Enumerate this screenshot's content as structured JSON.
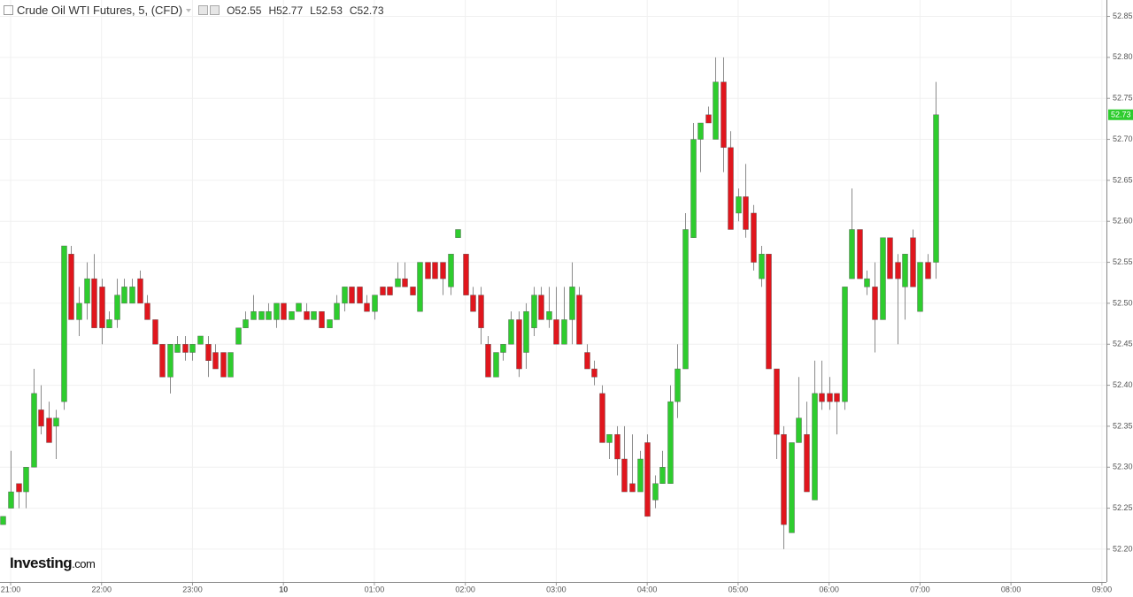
{
  "chart_data": {
    "type": "candlestick",
    "title": "Crude Oil WTI Futures, 5, (CFD)",
    "readout": [
      {
        "label": "O",
        "value": 52.55
      },
      {
        "label": "H",
        "value": 52.77
      },
      {
        "label": "L",
        "value": 52.53
      },
      {
        "label": "C",
        "value": 52.73
      }
    ],
    "watermark": [
      "Investing",
      ".com"
    ],
    "up_color": "#2ecc2e",
    "down_color": "#e0161d",
    "wick_color": "#8a8a8a",
    "grid": true,
    "x": [
      "20:55",
      "21:00",
      "21:05",
      "21:10",
      "21:15",
      "21:20",
      "21:25",
      "21:30",
      "21:35",
      "21:40",
      "21:45",
      "21:50",
      "21:55",
      "22:00",
      "22:05",
      "22:10",
      "22:15",
      "22:20",
      "22:25",
      "22:30",
      "22:35",
      "22:40",
      "22:45",
      "22:50",
      "22:55",
      "23:00",
      "23:05",
      "23:10",
      "23:15",
      "23:20",
      "23:25",
      "23:30",
      "23:35",
      "23:40",
      "23:45",
      "23:50",
      "23:55",
      "00:00",
      "00:05",
      "00:10",
      "00:15",
      "00:20",
      "00:25",
      "00:30",
      "00:35",
      "00:40",
      "00:45",
      "00:50",
      "00:55",
      "01:00",
      "01:05",
      "01:10",
      "01:15",
      "01:20",
      "01:25",
      "01:30",
      "01:35",
      "01:40",
      "01:45",
      "01:50",
      "01:55",
      "02:00",
      "02:05",
      "02:10",
      "02:15",
      "02:20",
      "02:25",
      "02:30",
      "02:35",
      "02:40",
      "02:45",
      "02:50",
      "02:55",
      "03:00",
      "03:05",
      "03:10",
      "03:15",
      "03:20",
      "03:25",
      "03:30",
      "03:35",
      "03:40",
      "03:45",
      "03:50",
      "03:55",
      "04:00",
      "04:05",
      "04:10",
      "04:15",
      "04:20",
      "04:25",
      "04:30",
      "04:35",
      "04:40",
      "04:45",
      "04:50",
      "04:55",
      "05:00",
      "05:05",
      "05:10",
      "05:15",
      "05:20",
      "05:25",
      "05:30",
      "05:35",
      "05:40",
      "05:45",
      "05:50",
      "05:55",
      "06:00",
      "06:05",
      "06:10",
      "06:15",
      "06:20",
      "06:25",
      "06:30",
      "06:35",
      "06:40",
      "06:45",
      "06:50",
      "06:55",
      "07:00",
      "07:05",
      "07:10"
    ],
    "open": [
      52.23,
      52.25,
      52.28,
      52.27,
      52.3,
      52.37,
      52.36,
      52.35,
      52.38,
      52.56,
      52.48,
      52.5,
      52.53,
      52.52,
      52.47,
      52.48,
      52.5,
      52.5,
      52.53,
      52.5,
      52.48,
      52.45,
      52.41,
      52.44,
      52.45,
      52.44,
      52.45,
      52.45,
      52.44,
      52.44,
      52.41,
      52.45,
      52.47,
      52.48,
      52.48,
      52.48,
      52.48,
      52.5,
      52.48,
      52.49,
      52.49,
      52.48,
      52.49,
      52.47,
      52.48,
      52.5,
      52.52,
      52.52,
      52.5,
      52.49,
      52.52,
      52.52,
      52.52,
      52.53,
      52.52,
      52.49,
      52.55,
      52.55,
      52.55,
      52.52,
      52.58,
      52.56,
      52.51,
      52.51,
      52.45,
      52.41,
      52.44,
      52.45,
      52.48,
      52.44,
      52.47,
      52.51,
      52.48,
      52.48,
      52.45,
      52.48,
      52.51,
      52.44,
      52.42,
      52.39,
      52.33,
      52.34,
      52.31,
      52.28,
      52.27,
      52.33,
      52.26,
      52.28,
      52.28,
      52.38,
      52.42,
      52.58,
      52.7,
      52.73,
      52.7,
      52.77,
      52.69,
      52.61,
      52.63,
      52.61,
      52.53,
      52.56,
      52.42,
      52.34,
      52.22,
      52.33,
      52.34,
      52.26,
      52.39,
      52.39,
      52.39,
      52.38,
      52.53,
      52.59,
      52.52,
      52.52,
      52.48,
      52.58,
      52.55,
      52.52,
      52.58,
      52.49,
      52.55,
      52.55
    ],
    "high": [
      52.24,
      52.32,
      52.28,
      52.3,
      52.42,
      52.4,
      52.38,
      52.37,
      52.57,
      52.57,
      52.52,
      52.55,
      52.56,
      52.53,
      52.49,
      52.53,
      52.53,
      52.53,
      52.54,
      52.51,
      52.48,
      52.45,
      52.45,
      52.46,
      52.46,
      52.45,
      52.46,
      52.46,
      52.45,
      52.44,
      52.44,
      52.47,
      52.49,
      52.51,
      52.49,
      52.5,
      52.5,
      52.5,
      52.49,
      52.5,
      52.5,
      52.49,
      52.49,
      52.48,
      52.51,
      52.52,
      52.52,
      52.52,
      52.51,
      52.51,
      52.52,
      52.52,
      52.55,
      52.55,
      52.52,
      52.55,
      52.55,
      52.55,
      52.55,
      52.56,
      52.59,
      52.56,
      52.52,
      52.52,
      52.46,
      52.44,
      52.45,
      52.49,
      52.49,
      52.5,
      52.52,
      52.52,
      52.52,
      52.52,
      52.52,
      52.55,
      52.52,
      52.45,
      52.43,
      52.4,
      52.34,
      52.35,
      52.35,
      52.34,
      52.32,
      52.34,
      52.29,
      52.32,
      52.4,
      52.45,
      52.61,
      52.72,
      52.72,
      52.74,
      52.8,
      52.8,
      52.71,
      52.64,
      52.67,
      52.62,
      52.57,
      52.56,
      52.42,
      52.35,
      52.33,
      52.41,
      52.38,
      52.43,
      52.43,
      52.41,
      52.39,
      52.52,
      52.64,
      52.59,
      52.54,
      52.55,
      52.58,
      52.58,
      52.56,
      52.56,
      52.59,
      52.55,
      52.56,
      52.77
    ],
    "low": [
      52.23,
      52.25,
      52.25,
      52.25,
      52.3,
      52.34,
      52.33,
      52.31,
      52.37,
      52.48,
      52.46,
      52.48,
      52.47,
      52.45,
      52.47,
      52.47,
      52.5,
      52.5,
      52.5,
      52.48,
      52.45,
      52.41,
      52.39,
      52.44,
      52.43,
      52.43,
      52.45,
      52.41,
      52.42,
      52.41,
      52.41,
      52.45,
      52.47,
      52.48,
      52.48,
      52.48,
      52.47,
      52.48,
      52.48,
      52.49,
      52.48,
      52.48,
      52.47,
      52.47,
      52.48,
      52.49,
      52.5,
      52.5,
      52.49,
      52.48,
      52.51,
      52.51,
      52.52,
      52.52,
      52.51,
      52.49,
      52.53,
      52.53,
      52.51,
      52.51,
      52.58,
      52.51,
      52.49,
      52.45,
      52.41,
      52.41,
      52.43,
      52.45,
      52.41,
      52.42,
      52.46,
      52.48,
      52.47,
      52.45,
      52.45,
      52.45,
      52.45,
      52.42,
      52.4,
      52.33,
      52.31,
      52.29,
      52.27,
      52.27,
      52.27,
      52.24,
      52.25,
      52.28,
      52.28,
      52.36,
      52.42,
      52.58,
      52.66,
      52.72,
      52.7,
      52.66,
      52.59,
      52.6,
      52.58,
      52.54,
      52.52,
      52.42,
      52.31,
      52.2,
      52.22,
      52.33,
      52.27,
      52.26,
      52.37,
      52.37,
      52.34,
      52.37,
      52.53,
      52.53,
      52.51,
      52.44,
      52.48,
      52.53,
      52.45,
      52.48,
      52.52,
      52.49,
      52.53,
      52.53
    ],
    "close": [
      52.24,
      52.27,
      52.27,
      52.3,
      52.39,
      52.35,
      52.33,
      52.36,
      52.57,
      52.48,
      52.5,
      52.53,
      52.47,
      52.47,
      52.48,
      52.51,
      52.52,
      52.52,
      52.5,
      52.48,
      52.45,
      52.41,
      52.45,
      52.45,
      52.44,
      52.45,
      52.46,
      52.43,
      52.42,
      52.41,
      52.44,
      52.47,
      52.48,
      52.49,
      52.49,
      52.49,
      52.5,
      52.48,
      52.49,
      52.5,
      52.48,
      52.49,
      52.47,
      52.48,
      52.5,
      52.52,
      52.5,
      52.5,
      52.49,
      52.51,
      52.51,
      52.51,
      52.53,
      52.52,
      52.51,
      52.55,
      52.53,
      52.53,
      52.53,
      52.56,
      52.59,
      52.51,
      52.49,
      52.47,
      52.41,
      52.44,
      52.45,
      52.48,
      52.42,
      52.49,
      52.51,
      52.48,
      52.49,
      52.45,
      52.48,
      52.52,
      52.45,
      52.42,
      52.41,
      52.33,
      52.34,
      52.31,
      52.27,
      52.27,
      52.31,
      52.24,
      52.28,
      52.3,
      52.38,
      52.42,
      52.59,
      52.7,
      52.72,
      52.72,
      52.77,
      52.69,
      52.59,
      52.63,
      52.59,
      52.55,
      52.56,
      52.42,
      52.34,
      52.23,
      52.33,
      52.36,
      52.27,
      52.39,
      52.38,
      52.38,
      52.38,
      52.52,
      52.59,
      52.53,
      52.53,
      52.48,
      52.58,
      52.53,
      52.53,
      52.56,
      52.52,
      52.55,
      52.53,
      52.73
    ],
    "xlim": [
      "20:53",
      "09:03"
    ],
    "xticks": [
      "21:00",
      "22:00",
      "23:00",
      {
        "value": "00:00",
        "label": "10"
      },
      "01:00",
      "02:00",
      "03:00",
      "04:00",
      "05:00",
      "06:00",
      "07:00",
      "08:00",
      "09:00"
    ],
    "ylim": [
      52.16,
      52.87
    ],
    "yticks": [
      52.85,
      {
        "value": 52.8,
        "label": "52.80"
      },
      52.75,
      {
        "value": 52.7,
        "label": "52.70"
      },
      52.65,
      {
        "value": 52.6,
        "label": "52.60"
      },
      52.55,
      {
        "value": 52.5,
        "label": "52.50"
      },
      52.45,
      {
        "value": 52.4,
        "label": "52.40"
      },
      52.35,
      {
        "value": 52.3,
        "label": "52.30"
      },
      52.25,
      {
        "value": 52.2,
        "label": "52.20"
      }
    ]
  }
}
